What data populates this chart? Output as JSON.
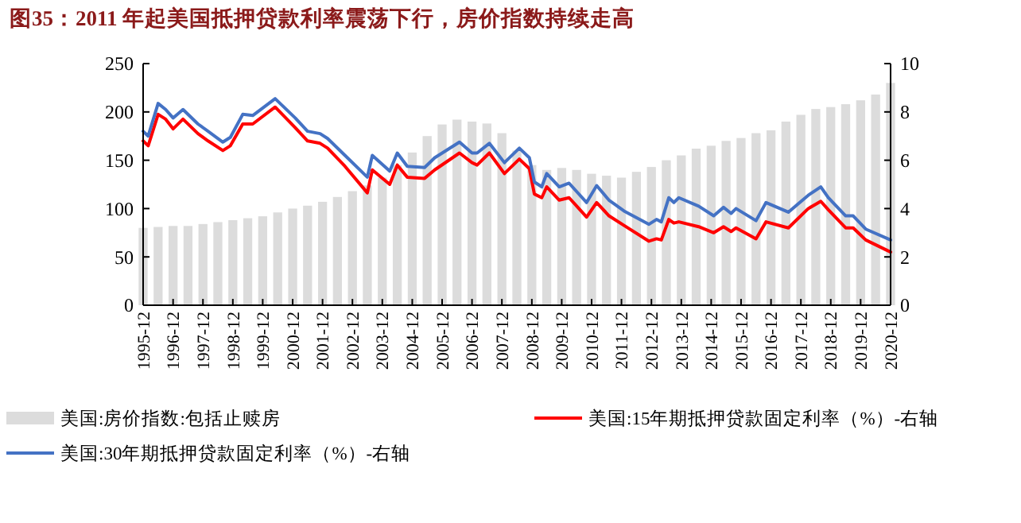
{
  "chart_data": {
    "type": "line",
    "title": "图35：2011 年起美国抵押贷款利率震荡下行，房价指数持续走高",
    "xlim": [
      "1995-12",
      "2020-12"
    ],
    "xticks": [
      "1995-12",
      "1996-12",
      "1997-12",
      "1998-12",
      "1999-12",
      "2000-12",
      "2001-12",
      "2002-12",
      "2003-12",
      "2004-12",
      "2005-12",
      "2006-12",
      "2007-12",
      "2008-12",
      "2009-12",
      "2010-12",
      "2011-12",
      "2012-12",
      "2013-12",
      "2014-12",
      "2015-12",
      "2016-12",
      "2017-12",
      "2018-12",
      "2019-12",
      "2020-12"
    ],
    "ylim": [
      0,
      250
    ],
    "yticks": [
      0,
      50,
      100,
      150,
      200,
      250
    ],
    "y2lim": [
      0,
      10
    ],
    "y2ticks": [
      0,
      2,
      4,
      6,
      8,
      10
    ],
    "legend": "bottom",
    "grid": false,
    "line_style": "solid",
    "marker": "none",
    "series": [
      {
        "type": "bar",
        "name": "美国:房价指数:包括止赎房",
        "color": "#dcdcdc",
        "x": [
          "1995-12",
          "1996-06",
          "1996-12",
          "1997-06",
          "1997-12",
          "1998-06",
          "1998-12",
          "1999-06",
          "1999-12",
          "2000-06",
          "2000-12",
          "2001-06",
          "2001-12",
          "2002-06",
          "2002-12",
          "2003-06",
          "2003-12",
          "2004-06",
          "2004-12",
          "2005-06",
          "2005-12",
          "2006-06",
          "2006-12",
          "2007-06",
          "2007-12",
          "2008-06",
          "2008-12",
          "2009-06",
          "2009-12",
          "2010-06",
          "2010-12",
          "2011-06",
          "2011-12",
          "2012-06",
          "2012-12",
          "2013-06",
          "2013-12",
          "2014-06",
          "2014-12",
          "2015-06",
          "2015-12",
          "2016-06",
          "2016-12",
          "2017-06",
          "2017-12",
          "2018-06",
          "2018-12",
          "2019-06",
          "2019-12",
          "2020-06",
          "2020-12"
        ],
        "values": [
          80,
          81,
          82,
          82,
          84,
          86,
          88,
          90,
          92,
          96,
          100,
          103,
          107,
          112,
          118,
          124,
          132,
          145,
          158,
          175,
          187,
          192,
          190,
          188,
          178,
          160,
          145,
          140,
          142,
          140,
          136,
          134,
          132,
          138,
          143,
          150,
          155,
          162,
          165,
          170,
          173,
          178,
          181,
          190,
          197,
          203,
          205,
          208,
          212,
          218,
          230
        ]
      },
      {
        "axis": "y2",
        "name": "美国:15年期抵押贷款固定利率（%）-右轴",
        "color": "#ff0000",
        "x": [
          "1995-12",
          "1996-02",
          "1996-06",
          "1996-09",
          "1996-12",
          "1997-04",
          "1997-10",
          "1998-02",
          "1998-08",
          "1998-11",
          "1999-04",
          "1999-08",
          "2000-05",
          "2001-01",
          "2001-06",
          "2001-11",
          "2002-02",
          "2002-09",
          "2003-06",
          "2003-08",
          "2004-03",
          "2004-06",
          "2004-10",
          "2005-05",
          "2005-09",
          "2006-07",
          "2006-12",
          "2007-02",
          "2007-07",
          "2008-01",
          "2008-07",
          "2008-11",
          "2009-01",
          "2009-04",
          "2009-06",
          "2009-11",
          "2010-03",
          "2010-10",
          "2011-02",
          "2011-07",
          "2012-01",
          "2012-11",
          "2013-02",
          "2013-04",
          "2013-07",
          "2013-09",
          "2013-11",
          "2014-07",
          "2015-01",
          "2015-05",
          "2015-08",
          "2015-10",
          "2016-06",
          "2016-10",
          "2017-07",
          "2018-03",
          "2018-08",
          "2018-11",
          "2019-06",
          "2019-09",
          "2020-02",
          "2020-12"
        ],
        "values": [
          6.8,
          6.6,
          7.9,
          7.7,
          7.3,
          7.7,
          7.1,
          6.8,
          6.4,
          6.6,
          7.5,
          7.5,
          8.2,
          7.35,
          6.8,
          6.7,
          6.5,
          5.75,
          4.65,
          5.6,
          5.0,
          5.8,
          5.3,
          5.25,
          5.6,
          6.3,
          5.9,
          5.8,
          6.3,
          5.45,
          6.05,
          5.65,
          4.6,
          4.45,
          4.9,
          4.35,
          4.45,
          3.65,
          4.25,
          3.7,
          3.3,
          2.65,
          2.75,
          2.7,
          3.55,
          3.4,
          3.45,
          3.25,
          3.0,
          3.25,
          3.05,
          3.2,
          2.75,
          3.45,
          3.2,
          4.0,
          4.3,
          3.95,
          3.2,
          3.2,
          2.7,
          2.2
        ]
      },
      {
        "axis": "y2",
        "name": "美国:30年期抵押贷款固定利率（%）-右轴",
        "color": "#4472c4",
        "x": [
          "1995-12",
          "1996-02",
          "1996-06",
          "1996-09",
          "1996-12",
          "1997-04",
          "1997-10",
          "1998-02",
          "1998-08",
          "1998-11",
          "1999-04",
          "1999-08",
          "2000-05",
          "2001-01",
          "2001-06",
          "2001-11",
          "2002-02",
          "2002-09",
          "2003-06",
          "2003-08",
          "2004-03",
          "2004-06",
          "2004-10",
          "2005-05",
          "2005-09",
          "2006-07",
          "2006-12",
          "2007-02",
          "2007-07",
          "2008-01",
          "2008-07",
          "2008-11",
          "2009-01",
          "2009-04",
          "2009-06",
          "2009-11",
          "2010-03",
          "2010-10",
          "2011-02",
          "2011-07",
          "2012-01",
          "2012-11",
          "2013-02",
          "2013-04",
          "2013-07",
          "2013-09",
          "2013-11",
          "2014-07",
          "2015-01",
          "2015-05",
          "2015-08",
          "2015-10",
          "2016-06",
          "2016-10",
          "2017-07",
          "2018-03",
          "2018-08",
          "2018-11",
          "2019-06",
          "2019-09",
          "2020-02",
          "2020-12"
        ],
        "values": [
          7.2,
          7.0,
          8.35,
          8.1,
          7.75,
          8.1,
          7.5,
          7.2,
          6.75,
          6.95,
          7.9,
          7.85,
          8.55,
          7.75,
          7.2,
          7.1,
          6.9,
          6.2,
          5.3,
          6.2,
          5.55,
          6.3,
          5.75,
          5.7,
          6.1,
          6.75,
          6.3,
          6.3,
          6.7,
          5.9,
          6.5,
          6.1,
          5.1,
          4.9,
          5.45,
          4.9,
          5.05,
          4.25,
          4.95,
          4.35,
          3.9,
          3.35,
          3.55,
          3.45,
          4.45,
          4.25,
          4.45,
          4.1,
          3.7,
          4.05,
          3.8,
          4.0,
          3.5,
          4.25,
          3.85,
          4.55,
          4.9,
          4.45,
          3.7,
          3.7,
          3.15,
          2.7
        ]
      }
    ]
  }
}
